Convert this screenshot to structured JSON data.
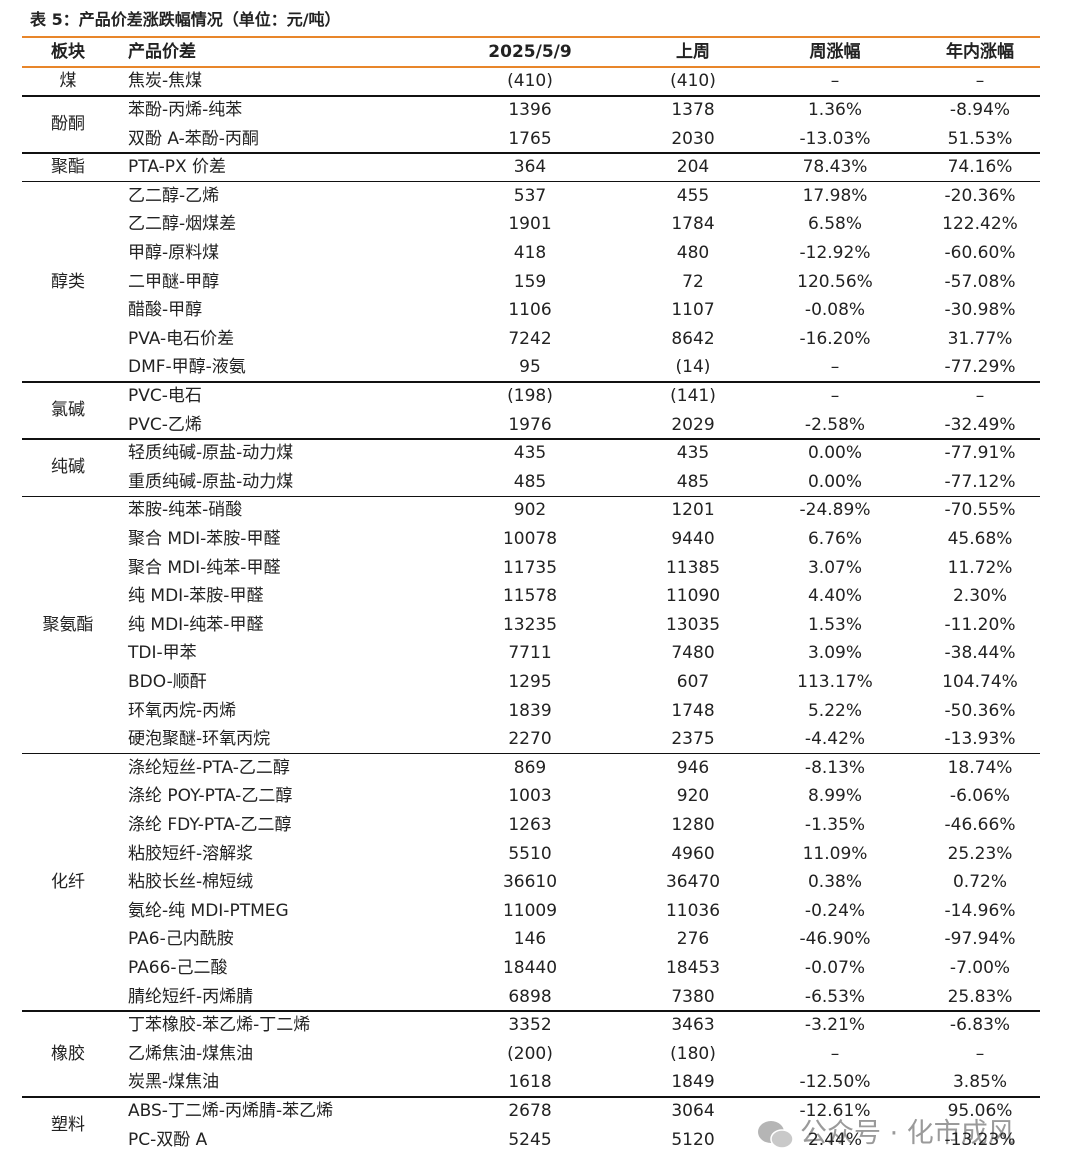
{
  "title": "表 5：产品价差涨跌幅情况（单位：元/吨）",
  "header": [
    "板块",
    "产品价差",
    "2025/5/9",
    "上周",
    "周涨幅",
    "年内涨幅"
  ],
  "groups": [
    {
      "name": "煤",
      "rows": [
        [
          "焦炭-焦煤",
          "(410)",
          "(410)",
          "–",
          "–"
        ]
      ]
    },
    {
      "name": "酚酮",
      "rows": [
        [
          "苯酚-丙烯-纯苯",
          "1396",
          "1378",
          "1.36%",
          "-8.94%"
        ],
        [
          "双酚 A-苯酚-丙酮",
          "1765",
          "2030",
          "-13.03%",
          "51.53%"
        ]
      ]
    },
    {
      "name": "聚酯",
      "rows": [
        [
          "PTA-PX 价差",
          "364",
          "204",
          "78.43%",
          "74.16%"
        ]
      ]
    },
    {
      "name": "醇类",
      "rows": [
        [
          "乙二醇-乙烯",
          "537",
          "455",
          "17.98%",
          "-20.36%"
        ],
        [
          "乙二醇-烟煤差",
          "1901",
          "1784",
          "6.58%",
          "122.42%"
        ],
        [
          "甲醇-原料煤",
          "418",
          "480",
          "-12.92%",
          "-60.60%"
        ],
        [
          "二甲醚-甲醇",
          "159",
          "72",
          "120.56%",
          "-57.08%"
        ],
        [
          "醋酸-甲醇",
          "1106",
          "1107",
          "-0.08%",
          "-30.98%"
        ],
        [
          "PVA-电石价差",
          "7242",
          "8642",
          "-16.20%",
          "31.77%"
        ],
        [
          "DMF-甲醇-液氨",
          "95",
          "(14)",
          "–",
          "-77.29%"
        ]
      ]
    },
    {
      "name": "氯碱",
      "rows": [
        [
          "PVC-电石",
          "(198)",
          "(141)",
          "–",
          "–"
        ],
        [
          "PVC-乙烯",
          "1976",
          "2029",
          "-2.58%",
          "-32.49%"
        ]
      ]
    },
    {
      "name": "纯碱",
      "rows": [
        [
          "轻质纯碱-原盐-动力煤",
          "435",
          "435",
          "0.00%",
          "-77.91%"
        ],
        [
          "重质纯碱-原盐-动力煤",
          "485",
          "485",
          "0.00%",
          "-77.12%"
        ]
      ]
    },
    {
      "name": "聚氨酯",
      "rows": [
        [
          "苯胺-纯苯-硝酸",
          "902",
          "1201",
          "-24.89%",
          "-70.55%"
        ],
        [
          "聚合 MDI-苯胺-甲醛",
          "10078",
          "9440",
          "6.76%",
          "45.68%"
        ],
        [
          "聚合 MDI-纯苯-甲醛",
          "11735",
          "11385",
          "3.07%",
          "11.72%"
        ],
        [
          "纯 MDI-苯胺-甲醛",
          "11578",
          "11090",
          "4.40%",
          "2.30%"
        ],
        [
          "纯 MDI-纯苯-甲醛",
          "13235",
          "13035",
          "1.53%",
          "-11.20%"
        ],
        [
          "TDI-甲苯",
          "7711",
          "7480",
          "3.09%",
          "-38.44%"
        ],
        [
          "BDO-顺酐",
          "1295",
          "607",
          "113.17%",
          "104.74%"
        ],
        [
          "环氧丙烷-丙烯",
          "1839",
          "1748",
          "5.22%",
          "-50.36%"
        ],
        [
          "硬泡聚醚-环氧丙烷",
          "2270",
          "2375",
          "-4.42%",
          "-13.93%"
        ]
      ]
    },
    {
      "name": "化纤",
      "rows": [
        [
          "涤纶短丝-PTA-乙二醇",
          "869",
          "946",
          "-8.13%",
          "18.74%"
        ],
        [
          "涤纶 POY-PTA-乙二醇",
          "1003",
          "920",
          "8.99%",
          "-6.06%"
        ],
        [
          "涤纶 FDY-PTA-乙二醇",
          "1263",
          "1280",
          "-1.35%",
          "-46.66%"
        ],
        [
          "粘胶短纤-溶解浆",
          "5510",
          "4960",
          "11.09%",
          "25.23%"
        ],
        [
          "粘胶长丝-棉短绒",
          "36610",
          "36470",
          "0.38%",
          "0.72%"
        ],
        [
          "氨纶-纯 MDI-PTMEG",
          "11009",
          "11036",
          "-0.24%",
          "-14.96%"
        ],
        [
          "PA6-己内酰胺",
          "146",
          "276",
          "-46.90%",
          "-97.94%"
        ],
        [
          "PA66-己二酸",
          "18440",
          "18453",
          "-0.07%",
          "-7.00%"
        ],
        [
          "腈纶短纤-丙烯腈",
          "6898",
          "7380",
          "-6.53%",
          "25.83%"
        ]
      ]
    },
    {
      "name": "橡胶",
      "rows": [
        [
          "丁苯橡胶-苯乙烯-丁二烯",
          "3352",
          "3463",
          "-3.21%",
          "-6.83%"
        ],
        [
          "乙烯焦油-煤焦油",
          "(200)",
          "(180)",
          "–",
          "–"
        ],
        [
          "炭黑-煤焦油",
          "1618",
          "1849",
          "-12.50%",
          "3.85%"
        ]
      ]
    },
    {
      "name": "塑料",
      "rows": [
        [
          "ABS-丁二烯-丙烯腈-苯乙烯",
          "2678",
          "3064",
          "-12.61%",
          "95.06%"
        ],
        [
          "PC-双酚 A",
          "5245",
          "5120",
          "2.44%",
          "-13.23%"
        ]
      ]
    }
  ],
  "watermark": "公众号 · 化市成风"
}
